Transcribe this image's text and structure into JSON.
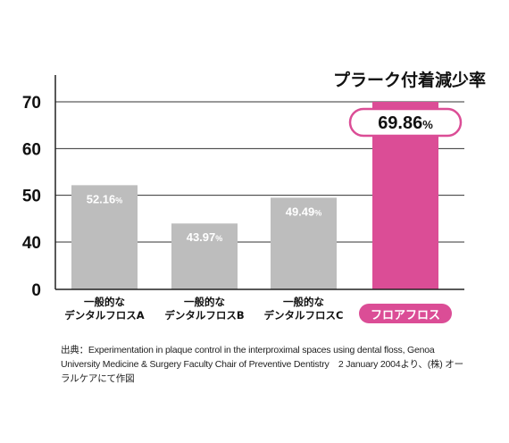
{
  "chart_data": {
    "type": "bar",
    "title": "プラーク付着減少率",
    "categories": [
      [
        "一般的な",
        "デンタルフロスA"
      ],
      [
        "一般的な",
        "デンタルフロスB"
      ],
      [
        "一般的な",
        "デンタルフロスC"
      ],
      [
        "フロアフロス"
      ]
    ],
    "values": [
      52.16,
      43.97,
      49.49,
      69.86
    ],
    "value_labels": [
      "52.16%",
      "43.97%",
      "49.49%",
      "69.86%"
    ],
    "yticks": [
      0,
      40,
      50,
      60,
      70
    ],
    "highlight_index": 3,
    "grid": true,
    "axis_break": "between 0 and 40",
    "colors": {
      "bar": "#bdbdbd",
      "highlight": "#db4d96",
      "axis": "#222222",
      "grid": "#333333"
    }
  },
  "source_note": "出典：Experimentation in plaque control in the interproximal spaces using dental floss, Genoa University Medicine & Surgery Faculty Chair of Preventive Dentistry　2 January 2004より、(株) オーラルケアにて作図"
}
